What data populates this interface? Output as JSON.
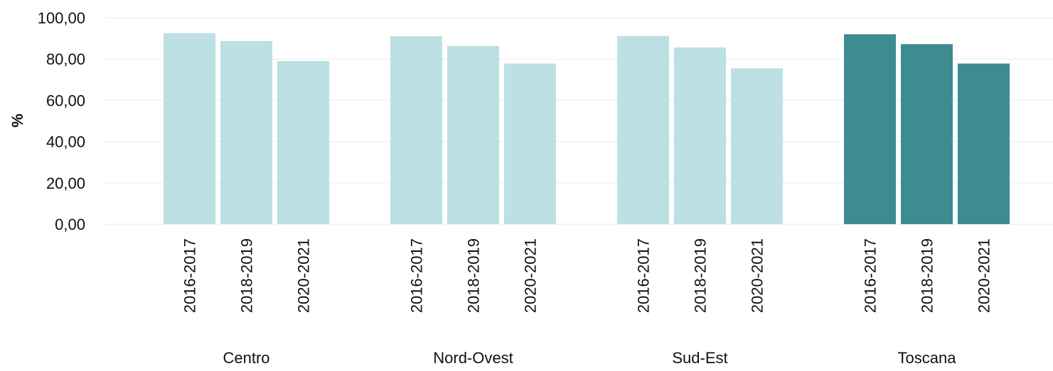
{
  "chart_data": {
    "type": "bar",
    "title": "",
    "xlabel": "",
    "ylabel": "%",
    "ylim": [
      0,
      100
    ],
    "yticks": [
      "0,00",
      "20,00",
      "40,00",
      "60,00",
      "80,00",
      "100,00"
    ],
    "ytick_values": [
      0,
      20,
      40,
      60,
      80,
      100
    ],
    "grid": true,
    "legend": "none",
    "groups": [
      {
        "name": "Centro",
        "highlight": false,
        "categories": [
          "2016-2017",
          "2018-2019",
          "2020-2021"
        ],
        "values": [
          92.5,
          88.7,
          79.0
        ]
      },
      {
        "name": "Nord-Ovest",
        "highlight": false,
        "categories": [
          "2016-2017",
          "2018-2019",
          "2020-2021"
        ],
        "values": [
          91.0,
          86.3,
          77.8
        ]
      },
      {
        "name": "Sud-Est",
        "highlight": false,
        "categories": [
          "2016-2017",
          "2018-2019",
          "2020-2021"
        ],
        "values": [
          91.2,
          85.6,
          75.5
        ]
      },
      {
        "name": "Toscana",
        "highlight": true,
        "categories": [
          "2016-2017",
          "2018-2019",
          "2020-2021"
        ],
        "values": [
          92.0,
          87.2,
          77.8
        ]
      }
    ],
    "colors": {
      "default": "#bce0e3",
      "highlight": "#3c8c91"
    }
  }
}
